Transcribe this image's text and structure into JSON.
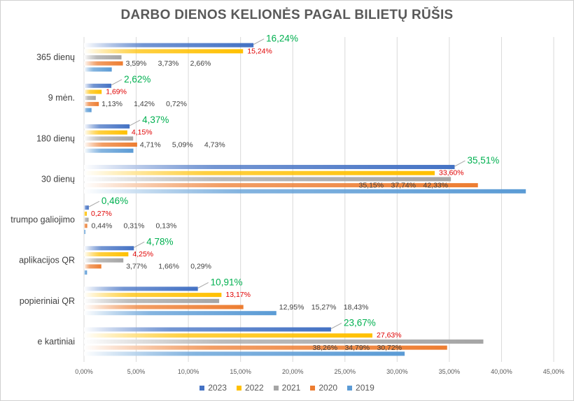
{
  "chart_data": {
    "type": "bar",
    "orientation": "horizontal",
    "title": "DARBO DIENOS KELIONĖS PAGAL BILIETŲ RŪŠIS",
    "categories": [
      "365 dienų",
      "9 mėn.",
      "180 dienų",
      "30 dienų",
      "trumpo galiojimo",
      "aplikacijos QR",
      "popieriniai  QR",
      "e kartiniai"
    ],
    "series": [
      {
        "name": "2023",
        "color": "#4472C4",
        "label_color": "#00B050",
        "values": [
          16.24,
          2.62,
          4.37,
          35.51,
          0.46,
          4.78,
          10.91,
          23.67
        ]
      },
      {
        "name": "2022",
        "color": "#FFC000",
        "label_color": "#E00000",
        "values": [
          15.24,
          1.69,
          4.15,
          33.6,
          0.27,
          4.25,
          13.17,
          27.63
        ]
      },
      {
        "name": "2021",
        "color": "#A5A5A5",
        "label_color": "#404040",
        "values": [
          3.59,
          1.13,
          4.71,
          35.15,
          0.44,
          3.77,
          12.95,
          38.26
        ]
      },
      {
        "name": "2020",
        "color": "#ED7D31",
        "label_color": "#404040",
        "values": [
          3.73,
          1.42,
          5.09,
          37.74,
          0.31,
          1.66,
          15.27,
          34.79
        ]
      },
      {
        "name": "2019",
        "color": "#5B9BD5",
        "label_color": "#404040",
        "values": [
          2.66,
          0.72,
          4.73,
          42.33,
          0.13,
          0.29,
          18.43,
          30.72
        ]
      }
    ],
    "xlim": [
      0,
      45
    ],
    "xticks": [
      "0,00%",
      "5,00%",
      "10,00%",
      "15,00%",
      "20,00%",
      "25,00%",
      "30,00%",
      "35,00%",
      "40,00%",
      "45,00%"
    ],
    "grid": true,
    "legend": "bottom",
    "label_format": "percent, comma decimal"
  }
}
